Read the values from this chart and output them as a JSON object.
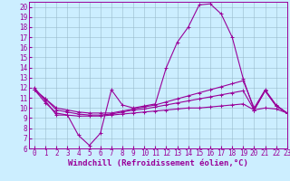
{
  "xlabel": "Windchill (Refroidissement éolien,°C)",
  "ylabel": "",
  "background_color": "#cceeff",
  "line_color": "#990099",
  "grid_color": "#99bbcc",
  "xlim": [
    -0.5,
    23
  ],
  "ylim": [
    6,
    20.5
  ],
  "xticks": [
    0,
    1,
    2,
    3,
    4,
    5,
    6,
    7,
    8,
    9,
    10,
    11,
    12,
    13,
    14,
    15,
    16,
    17,
    18,
    19,
    20,
    21,
    22,
    23
  ],
  "yticks": [
    6,
    7,
    8,
    9,
    10,
    11,
    12,
    13,
    14,
    15,
    16,
    17,
    18,
    19,
    20
  ],
  "lines": [
    {
      "x": [
        0,
        1,
        2,
        3,
        4,
        5,
        6,
        7,
        8,
        9,
        10,
        11,
        12,
        13,
        14,
        15,
        16,
        17,
        18,
        19,
        20,
        21,
        22,
        23
      ],
      "y": [
        12.0,
        10.7,
        9.3,
        9.3,
        7.3,
        6.3,
        7.5,
        11.8,
        10.3,
        10.0,
        10.2,
        10.4,
        14.0,
        16.5,
        18.0,
        20.2,
        20.3,
        19.3,
        17.0,
        12.9,
        9.8,
        11.7,
        10.2,
        9.5
      ]
    },
    {
      "x": [
        0,
        1,
        2,
        3,
        4,
        5,
        6,
        7,
        8,
        9,
        10,
        11,
        12,
        13,
        14,
        15,
        16,
        17,
        18,
        19,
        20,
        21,
        22,
        23
      ],
      "y": [
        11.8,
        10.9,
        10.0,
        9.8,
        9.6,
        9.5,
        9.5,
        9.5,
        9.7,
        9.9,
        10.1,
        10.3,
        10.6,
        10.9,
        11.2,
        11.5,
        11.8,
        12.1,
        12.4,
        12.7,
        10.0,
        11.8,
        10.3,
        9.5
      ]
    },
    {
      "x": [
        0,
        1,
        2,
        3,
        4,
        5,
        6,
        7,
        8,
        9,
        10,
        11,
        12,
        13,
        14,
        15,
        16,
        17,
        18,
        19,
        20,
        21,
        22,
        23
      ],
      "y": [
        11.8,
        10.9,
        9.8,
        9.6,
        9.4,
        9.3,
        9.3,
        9.4,
        9.6,
        9.8,
        9.9,
        10.1,
        10.3,
        10.5,
        10.7,
        10.9,
        11.1,
        11.3,
        11.5,
        11.7,
        9.8,
        11.7,
        10.2,
        9.5
      ]
    },
    {
      "x": [
        0,
        1,
        2,
        3,
        4,
        5,
        6,
        7,
        8,
        9,
        10,
        11,
        12,
        13,
        14,
        15,
        16,
        17,
        18,
        19,
        20,
        21,
        22,
        23
      ],
      "y": [
        11.8,
        10.5,
        9.5,
        9.3,
        9.2,
        9.2,
        9.2,
        9.3,
        9.4,
        9.5,
        9.6,
        9.7,
        9.8,
        9.9,
        10.0,
        10.0,
        10.1,
        10.2,
        10.3,
        10.4,
        9.8,
        10.0,
        9.9,
        9.5
      ]
    }
  ],
  "marker": "+",
  "marker_size": 3,
  "line_width": 0.8,
  "tick_fontsize": 5.5,
  "label_fontsize": 6.5
}
